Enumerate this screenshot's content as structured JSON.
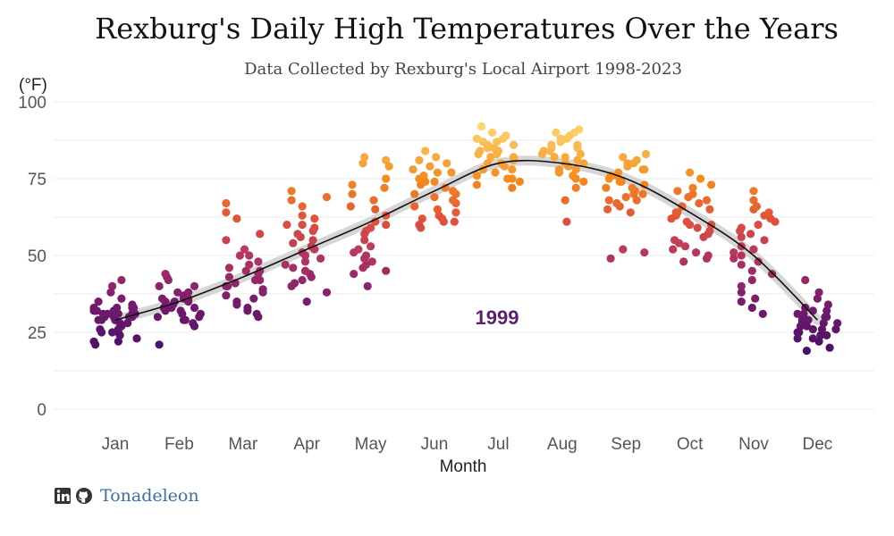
{
  "chart_data": {
    "type": "scatter",
    "title": "Rexburg's Daily High Temperatures Over the Years",
    "subtitle": "Data Collected by Rexburg's Local Airport 1998-2023",
    "xlabel": "Month",
    "ylabel": "(°F)",
    "ylim": [
      0,
      100
    ],
    "yticks": [
      0,
      25,
      50,
      75,
      100
    ],
    "categories": [
      "Jan",
      "Feb",
      "Mar",
      "Apr",
      "May",
      "Jun",
      "Jul",
      "Aug",
      "Sep",
      "Oct",
      "Nov",
      "Dec"
    ],
    "annotation": "1999",
    "grid": true,
    "smooth_trend": [
      {
        "month": 1,
        "value": 29
      },
      {
        "month": 2,
        "value": 35
      },
      {
        "month": 3,
        "value": 43
      },
      {
        "month": 4,
        "value": 52
      },
      {
        "month": 5,
        "value": 61
      },
      {
        "month": 6,
        "value": 71
      },
      {
        "month": 7,
        "value": 80
      },
      {
        "month": 8,
        "value": 80
      },
      {
        "month": 9,
        "value": 75
      },
      {
        "month": 10,
        "value": 64
      },
      {
        "month": 11,
        "value": 50
      },
      {
        "month": 12,
        "value": 29
      }
    ],
    "points": [
      [
        1,
        31
      ],
      [
        1,
        30
      ],
      [
        1,
        32
      ],
      [
        1,
        33
      ],
      [
        1,
        28
      ],
      [
        1,
        29
      ],
      [
        1,
        31
      ],
      [
        1,
        35
      ],
      [
        1,
        36
      ],
      [
        1,
        38
      ],
      [
        1,
        42
      ],
      [
        1,
        40
      ],
      [
        1,
        33
      ],
      [
        1,
        32
      ],
      [
        1,
        30
      ],
      [
        1,
        26
      ],
      [
        1,
        25
      ],
      [
        1,
        23
      ],
      [
        1,
        22
      ],
      [
        1,
        21
      ],
      [
        1,
        22
      ],
      [
        1,
        25
      ],
      [
        1,
        24
      ],
      [
        1,
        31
      ],
      [
        1,
        32
      ],
      [
        1,
        30
      ],
      [
        1,
        33
      ],
      [
        1,
        29
      ],
      [
        1,
        31
      ],
      [
        1,
        32
      ],
      [
        1,
        28
      ],
      [
        1,
        26
      ],
      [
        1,
        30
      ],
      [
        1,
        31
      ],
      [
        1,
        27
      ],
      [
        1,
        25
      ],
      [
        1,
        34
      ],
      [
        1,
        33
      ],
      [
        1,
        30
      ],
      [
        1,
        29
      ],
      [
        2,
        33
      ],
      [
        2,
        32
      ],
      [
        2,
        35
      ],
      [
        2,
        36
      ],
      [
        2,
        38
      ],
      [
        2,
        44
      ],
      [
        2,
        43
      ],
      [
        2,
        42
      ],
      [
        2,
        40
      ],
      [
        2,
        37
      ],
      [
        2,
        35
      ],
      [
        2,
        33
      ],
      [
        2,
        31
      ],
      [
        2,
        30
      ],
      [
        2,
        28
      ],
      [
        2,
        27
      ],
      [
        2,
        29
      ],
      [
        2,
        33
      ],
      [
        2,
        34
      ],
      [
        2,
        36
      ],
      [
        2,
        30
      ],
      [
        2,
        21
      ],
      [
        2,
        35
      ],
      [
        2,
        38
      ],
      [
        2,
        32
      ],
      [
        2,
        31
      ],
      [
        2,
        33
      ],
      [
        2,
        29
      ],
      [
        2,
        36
      ],
      [
        2,
        40
      ],
      [
        3,
        33
      ],
      [
        3,
        35
      ],
      [
        3,
        37
      ],
      [
        3,
        40
      ],
      [
        3,
        42
      ],
      [
        3,
        45
      ],
      [
        3,
        47
      ],
      [
        3,
        50
      ],
      [
        3,
        55
      ],
      [
        3,
        57
      ],
      [
        3,
        62
      ],
      [
        3,
        64
      ],
      [
        3,
        67
      ],
      [
        3,
        44
      ],
      [
        3,
        40
      ],
      [
        3,
        38
      ],
      [
        3,
        36
      ],
      [
        3,
        31
      ],
      [
        3,
        30
      ],
      [
        3,
        32
      ],
      [
        3,
        34
      ],
      [
        3,
        41
      ],
      [
        3,
        45
      ],
      [
        3,
        52
      ],
      [
        3,
        48
      ],
      [
        3,
        39
      ],
      [
        3,
        43
      ],
      [
        3,
        46
      ],
      [
        3,
        50
      ],
      [
        3,
        42
      ],
      [
        4,
        51
      ],
      [
        4,
        55
      ],
      [
        4,
        58
      ],
      [
        4,
        60
      ],
      [
        4,
        63
      ],
      [
        4,
        66
      ],
      [
        4,
        68
      ],
      [
        4,
        71
      ],
      [
        4,
        69
      ],
      [
        4,
        60
      ],
      [
        4,
        56
      ],
      [
        4,
        52
      ],
      [
        4,
        50
      ],
      [
        4,
        47
      ],
      [
        4,
        44
      ],
      [
        4,
        43
      ],
      [
        4,
        40
      ],
      [
        4,
        38
      ],
      [
        4,
        35
      ],
      [
        4,
        41
      ],
      [
        4,
        45
      ],
      [
        4,
        48
      ],
      [
        4,
        54
      ],
      [
        4,
        59
      ],
      [
        4,
        62
      ],
      [
        4,
        49
      ],
      [
        4,
        42
      ],
      [
        4,
        57
      ],
      [
        4,
        53
      ],
      [
        4,
        46
      ],
      [
        5,
        49
      ],
      [
        5,
        51
      ],
      [
        5,
        55
      ],
      [
        5,
        60
      ],
      [
        5,
        63
      ],
      [
        5,
        65
      ],
      [
        5,
        70
      ],
      [
        5,
        73
      ],
      [
        5,
        75
      ],
      [
        5,
        80
      ],
      [
        5,
        81
      ],
      [
        5,
        82
      ],
      [
        5,
        79
      ],
      [
        5,
        66
      ],
      [
        5,
        58
      ],
      [
        5,
        52
      ],
      [
        5,
        48
      ],
      [
        5,
        46
      ],
      [
        5,
        44
      ],
      [
        5,
        40
      ],
      [
        5,
        47
      ],
      [
        5,
        50
      ],
      [
        5,
        57
      ],
      [
        5,
        61
      ],
      [
        5,
        68
      ],
      [
        5,
        72
      ],
      [
        5,
        53
      ],
      [
        5,
        45
      ],
      [
        5,
        59
      ],
      [
        5,
        49
      ],
      [
        6,
        61
      ],
      [
        6,
        62
      ],
      [
        6,
        64
      ],
      [
        6,
        67
      ],
      [
        6,
        70
      ],
      [
        6,
        72
      ],
      [
        6,
        74
      ],
      [
        6,
        76
      ],
      [
        6,
        78
      ],
      [
        6,
        80
      ],
      [
        6,
        82
      ],
      [
        6,
        84
      ],
      [
        6,
        77
      ],
      [
        6,
        73
      ],
      [
        6,
        69
      ],
      [
        6,
        66
      ],
      [
        6,
        63
      ],
      [
        6,
        60
      ],
      [
        6,
        59
      ],
      [
        6,
        61
      ],
      [
        6,
        68
      ],
      [
        6,
        71
      ],
      [
        6,
        75
      ],
      [
        6,
        79
      ],
      [
        6,
        81
      ],
      [
        6,
        65
      ],
      [
        6,
        70
      ],
      [
        6,
        74
      ],
      [
        6,
        62
      ],
      [
        6,
        77
      ],
      [
        7,
        72
      ],
      [
        7,
        75
      ],
      [
        7,
        78
      ],
      [
        7,
        80
      ],
      [
        7,
        82
      ],
      [
        7,
        84
      ],
      [
        7,
        86
      ],
      [
        7,
        88
      ],
      [
        7,
        90
      ],
      [
        7,
        92
      ],
      [
        7,
        89
      ],
      [
        7,
        87
      ],
      [
        7,
        85
      ],
      [
        7,
        83
      ],
      [
        7,
        81
      ],
      [
        7,
        79
      ],
      [
        7,
        77
      ],
      [
        7,
        74
      ],
      [
        7,
        73
      ],
      [
        7,
        76
      ],
      [
        7,
        80
      ],
      [
        7,
        84
      ],
      [
        7,
        86
      ],
      [
        7,
        88
      ],
      [
        7,
        82
      ],
      [
        7,
        78
      ],
      [
        7,
        75
      ],
      [
        7,
        85
      ],
      [
        7,
        87
      ],
      [
        7,
        83
      ],
      [
        8,
        61
      ],
      [
        8,
        68
      ],
      [
        8,
        72
      ],
      [
        8,
        75
      ],
      [
        8,
        78
      ],
      [
        8,
        80
      ],
      [
        8,
        82
      ],
      [
        8,
        84
      ],
      [
        8,
        86
      ],
      [
        8,
        88
      ],
      [
        8,
        90
      ],
      [
        8,
        91
      ],
      [
        8,
        89
      ],
      [
        8,
        87
      ],
      [
        8,
        85
      ],
      [
        8,
        83
      ],
      [
        8,
        81
      ],
      [
        8,
        79
      ],
      [
        8,
        77
      ],
      [
        8,
        74
      ],
      [
        8,
        76
      ],
      [
        8,
        80
      ],
      [
        8,
        84
      ],
      [
        8,
        88
      ],
      [
        8,
        86
      ],
      [
        8,
        82
      ],
      [
        8,
        90
      ],
      [
        8,
        85
      ],
      [
        8,
        78
      ],
      [
        8,
        83
      ],
      [
        9,
        49
      ],
      [
        9,
        51
      ],
      [
        9,
        52
      ],
      [
        9,
        64
      ],
      [
        9,
        66
      ],
      [
        9,
        68
      ],
      [
        9,
        70
      ],
      [
        9,
        72
      ],
      [
        9,
        74
      ],
      [
        9,
        76
      ],
      [
        9,
        78
      ],
      [
        9,
        80
      ],
      [
        9,
        82
      ],
      [
        9,
        83
      ],
      [
        9,
        81
      ],
      [
        9,
        79
      ],
      [
        9,
        77
      ],
      [
        9,
        75
      ],
      [
        9,
        73
      ],
      [
        9,
        71
      ],
      [
        9,
        69
      ],
      [
        9,
        67
      ],
      [
        9,
        65
      ],
      [
        9,
        72
      ],
      [
        9,
        76
      ],
      [
        9,
        80
      ],
      [
        9,
        74
      ],
      [
        9,
        70
      ],
      [
        9,
        78
      ],
      [
        9,
        68
      ],
      [
        10,
        48
      ],
      [
        10,
        49
      ],
      [
        10,
        51
      ],
      [
        10,
        53
      ],
      [
        10,
        55
      ],
      [
        10,
        57
      ],
      [
        10,
        59
      ],
      [
        10,
        61
      ],
      [
        10,
        63
      ],
      [
        10,
        65
      ],
      [
        10,
        67
      ],
      [
        10,
        69
      ],
      [
        10,
        71
      ],
      [
        10,
        73
      ],
      [
        10,
        75
      ],
      [
        10,
        77
      ],
      [
        10,
        72
      ],
      [
        10,
        68
      ],
      [
        10,
        64
      ],
      [
        10,
        60
      ],
      [
        10,
        56
      ],
      [
        10,
        52
      ],
      [
        10,
        50
      ],
      [
        10,
        62
      ],
      [
        10,
        66
      ],
      [
        10,
        70
      ],
      [
        10,
        58
      ],
      [
        10,
        54
      ],
      [
        10,
        60
      ],
      [
        10,
        64
      ],
      [
        11,
        31
      ],
      [
        11,
        33
      ],
      [
        11,
        35
      ],
      [
        11,
        38
      ],
      [
        11,
        42
      ],
      [
        11,
        45
      ],
      [
        11,
        47
      ],
      [
        11,
        50
      ],
      [
        11,
        53
      ],
      [
        11,
        56
      ],
      [
        11,
        59
      ],
      [
        11,
        61
      ],
      [
        11,
        63
      ],
      [
        11,
        65
      ],
      [
        11,
        68
      ],
      [
        11,
        71
      ],
      [
        11,
        66
      ],
      [
        11,
        62
      ],
      [
        11,
        58
      ],
      [
        11,
        55
      ],
      [
        11,
        51
      ],
      [
        11,
        48
      ],
      [
        11,
        44
      ],
      [
        11,
        40
      ],
      [
        11,
        36
      ],
      [
        11,
        60
      ],
      [
        11,
        64
      ],
      [
        11,
        57
      ],
      [
        11,
        52
      ],
      [
        11,
        49
      ],
      [
        12,
        19
      ],
      [
        12,
        20
      ],
      [
        12,
        22
      ],
      [
        12,
        23
      ],
      [
        12,
        24
      ],
      [
        12,
        25
      ],
      [
        12,
        26
      ],
      [
        12,
        27
      ],
      [
        12,
        28
      ],
      [
        12,
        29
      ],
      [
        12,
        30
      ],
      [
        12,
        31
      ],
      [
        12,
        32
      ],
      [
        12,
        33
      ],
      [
        12,
        34
      ],
      [
        12,
        36
      ],
      [
        12,
        42
      ],
      [
        12,
        38
      ],
      [
        12,
        26
      ],
      [
        12,
        24
      ],
      [
        12,
        28
      ],
      [
        12,
        30
      ],
      [
        12,
        27
      ],
      [
        12,
        25
      ],
      [
        12,
        29
      ],
      [
        12,
        31
      ],
      [
        12,
        23
      ],
      [
        12,
        26
      ],
      [
        12,
        28
      ],
      [
        12,
        32
      ]
    ]
  },
  "footer": {
    "author": "Tonadeleon",
    "icons": [
      "linkedin-icon",
      "github-icon"
    ]
  }
}
